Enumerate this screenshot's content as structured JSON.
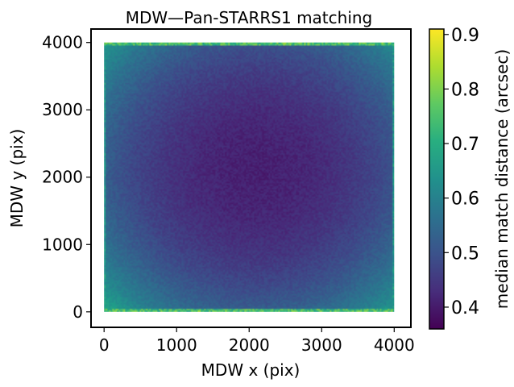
{
  "chart_data": {
    "type": "heatmap",
    "title": "MDW—Pan-STARRS1 matching",
    "xlabel": "MDW x (pix)",
    "ylabel": "MDW y (pix)",
    "xlim": [
      -180,
      4230
    ],
    "ylim": [
      -230,
      4200
    ],
    "xticks": [
      0,
      1000,
      2000,
      3000,
      4000
    ],
    "yticks": [
      0,
      1000,
      2000,
      3000,
      4000
    ],
    "data_extent": {
      "x": [
        0,
        4000
      ],
      "y": [
        0,
        4000
      ]
    },
    "colorbar": {
      "label": "median match distance (arcsec)",
      "range": [
        0.36,
        0.91
      ],
      "ticks": [
        0.4,
        0.5,
        0.6,
        0.7,
        0.8,
        0.9
      ],
      "tick_labels": [
        "0.4",
        "0.5",
        "0.6",
        "0.7",
        "0.8",
        "0.9"
      ],
      "colormap": "viridis"
    },
    "value_pattern": {
      "center": [
        2100,
        2100
      ],
      "center_value": 0.41,
      "side_mid_value": 0.5,
      "corner_value": 0.62,
      "edge_rows_value": 0.72
    }
  }
}
